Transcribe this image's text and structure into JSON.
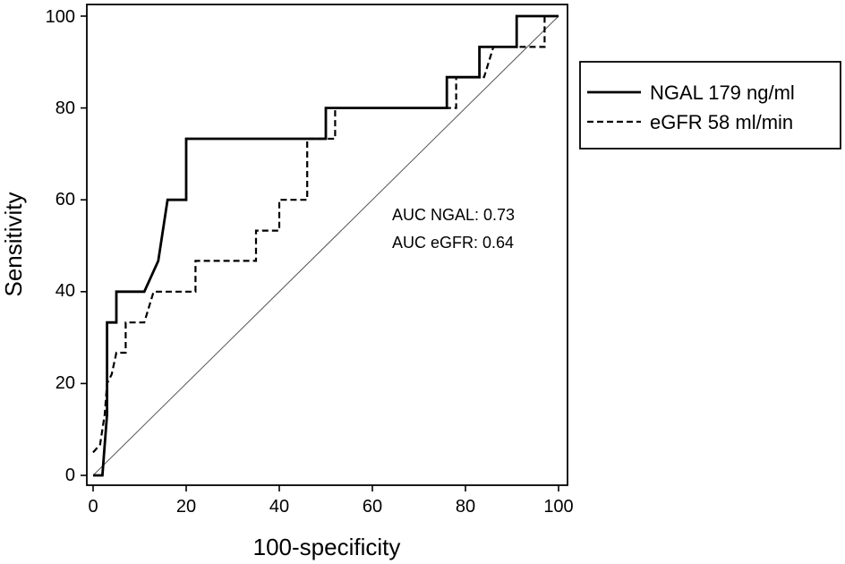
{
  "chart_data": {
    "type": "line",
    "title": "",
    "xlabel": "100-specificity",
    "ylabel": "Sensitivity",
    "xlim": [
      0,
      100
    ],
    "ylim": [
      0,
      100
    ],
    "xticks": [
      "0",
      "20",
      "40",
      "60",
      "80",
      "100"
    ],
    "yticks": [
      "0",
      "20",
      "40",
      "60",
      "80",
      "100"
    ],
    "grid": false,
    "legend_position": "right",
    "series": [
      {
        "name": "NGAL 179 ng/ml",
        "style": "solid",
        "color": "#000000",
        "x": [
          0,
          2,
          2.5,
          3,
          3,
          5,
          5,
          11,
          14,
          14,
          16,
          16,
          20,
          20,
          50,
          50,
          76,
          76,
          83,
          83,
          91,
          91,
          100
        ],
        "y": [
          0,
          0,
          6.7,
          13.3,
          33.3,
          33.3,
          40,
          40,
          46.7,
          46.7,
          60,
          60,
          60,
          73.3,
          73.3,
          80,
          80,
          86.7,
          86.7,
          93.3,
          93.3,
          100,
          100
        ]
      },
      {
        "name": "eGFR 58 ml/min",
        "style": "dashed",
        "color": "#000000",
        "x": [
          0,
          1.5,
          2.5,
          3,
          4,
          5,
          7,
          7,
          11,
          13,
          13,
          22,
          22,
          35,
          35,
          40,
          40,
          46,
          46,
          52,
          52,
          78,
          78,
          82,
          84,
          86,
          86,
          97,
          97,
          100
        ],
        "y": [
          5,
          6.7,
          13.3,
          20,
          22,
          26.7,
          26.7,
          33.3,
          33.3,
          40,
          40,
          40,
          46.7,
          46.7,
          53.3,
          53.3,
          60,
          60,
          73.3,
          73.3,
          80,
          80,
          86.7,
          86.7,
          86.7,
          93.3,
          93.3,
          93.3,
          100,
          100
        ]
      },
      {
        "name": "",
        "style": "reference",
        "color": "#555555",
        "x": [
          0,
          100
        ],
        "y": [
          0,
          100
        ]
      }
    ],
    "annotations": [
      "AUC NGAL: 0.73",
      "AUC eGFR: 0.64"
    ]
  }
}
